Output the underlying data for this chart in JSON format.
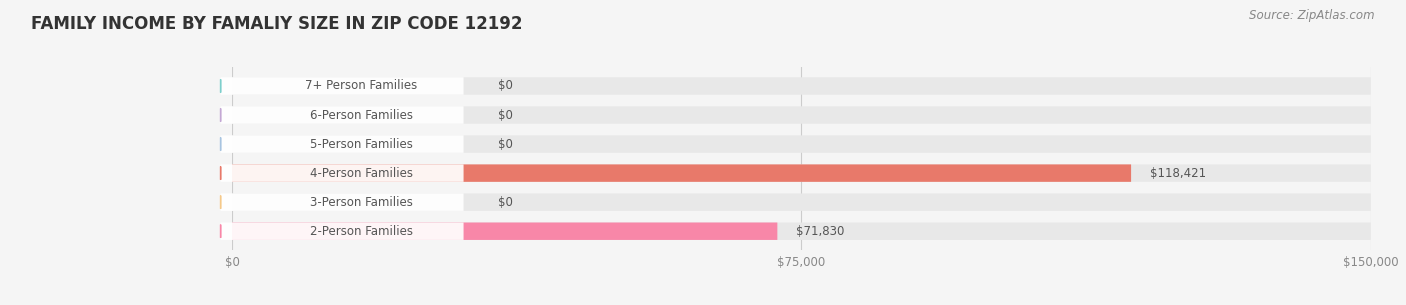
{
  "title": "FAMILY INCOME BY FAMALIY SIZE IN ZIP CODE 12192",
  "source": "Source: ZipAtlas.com",
  "categories": [
    "2-Person Families",
    "3-Person Families",
    "4-Person Families",
    "5-Person Families",
    "6-Person Families",
    "7+ Person Families"
  ],
  "values": [
    71830,
    0,
    118421,
    0,
    0,
    0
  ],
  "bar_colors": [
    "#f887a8",
    "#f5c98a",
    "#e8796a",
    "#a8c4e0",
    "#c4a8d4",
    "#7ecfcc"
  ],
  "xlim": [
    0,
    150000
  ],
  "xticks": [
    0,
    75000,
    150000
  ],
  "xtick_labels": [
    "$0",
    "$75,000",
    "$150,000"
  ],
  "value_labels": [
    "$71,830",
    "$0",
    "$118,421",
    "$0",
    "$0",
    "$0"
  ],
  "background_color": "#f5f5f5",
  "bar_bg_color": "#e8e8e8",
  "title_fontsize": 12,
  "label_fontsize": 8.5,
  "value_fontsize": 8.5,
  "source_fontsize": 8.5
}
